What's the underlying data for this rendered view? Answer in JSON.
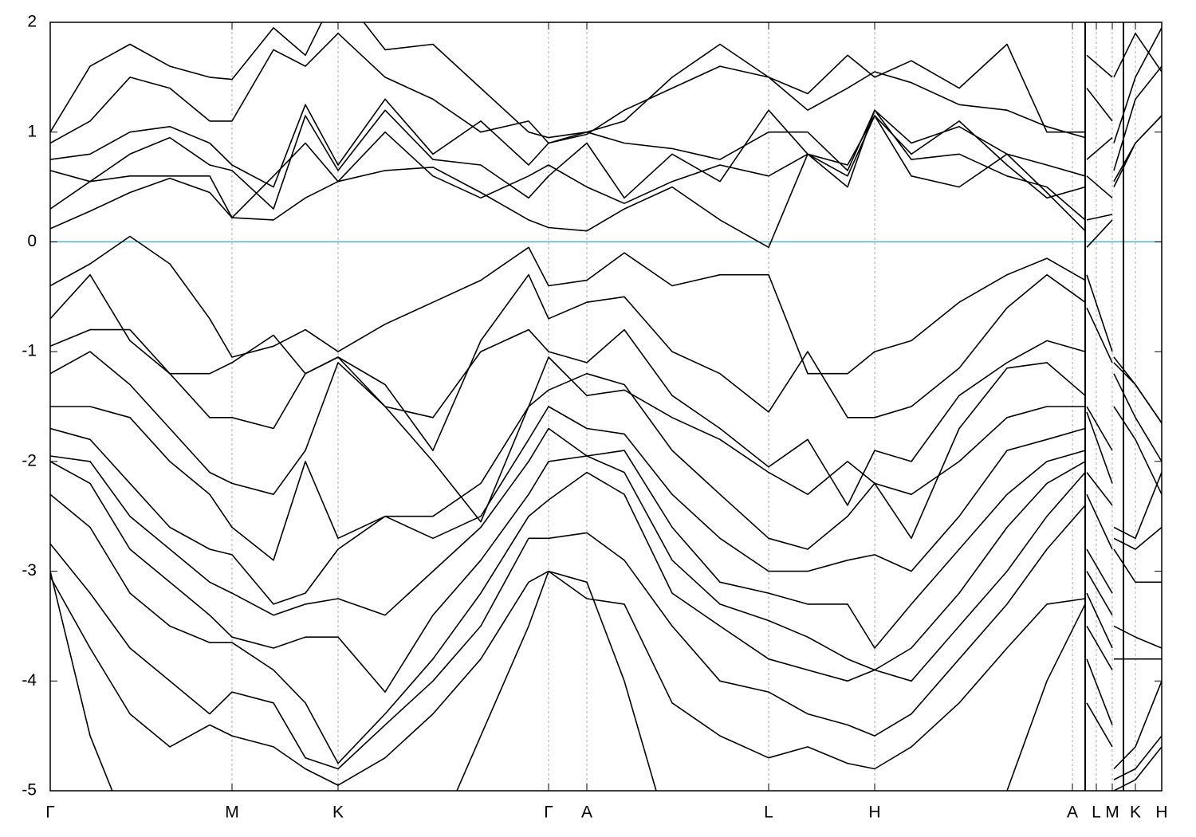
{
  "chart_data": {
    "type": "line",
    "xlim": [
      0,
      13.94
    ],
    "ylim": [
      -5,
      2
    ],
    "yticks": [
      2,
      1,
      0,
      -1,
      -2,
      -3,
      -4,
      -5
    ],
    "xticks": [
      {
        "value": 0,
        "label": "Γ"
      },
      {
        "value": 2.28,
        "label": "M"
      },
      {
        "value": 3.61,
        "label": "K"
      },
      {
        "value": 6.25,
        "label": "Γ"
      },
      {
        "value": 6.73,
        "label": "A"
      },
      {
        "value": 9.01,
        "label": "L"
      },
      {
        "value": 10.34,
        "label": "H"
      },
      {
        "value": 12.82,
        "label": "A"
      },
      {
        "value": 13.12,
        "label": "L"
      },
      {
        "value": 13.32,
        "label": "M"
      },
      {
        "value": 13.61,
        "label": "K"
      },
      {
        "value": 13.94,
        "label": "H"
      }
    ],
    "grid": "x",
    "reference_line": {
      "value": 0,
      "color": "#4fb0c6"
    },
    "x": [
      0,
      0.5,
      1.0,
      1.5,
      2.0,
      2.28,
      2.8,
      3.2,
      3.61,
      4.2,
      4.8,
      5.4,
      6.0,
      6.25,
      6.73,
      7.2,
      7.8,
      8.4,
      9.01,
      9.5,
      10.0,
      10.34,
      10.8,
      11.4,
      12.0,
      12.5,
      12.98,
      12.99,
      13.0,
      13.32,
      13.33,
      13.34,
      13.61,
      13.94
    ],
    "series": [
      {
        "color": "#000000",
        "values": [
          0.12,
          0.28,
          0.45,
          0.58,
          0.45,
          0.22,
          0.2,
          0.4,
          0.55,
          0.65,
          0.68,
          0.45,
          0.2,
          0.13,
          0.1,
          0.3,
          0.5,
          0.2,
          -0.05,
          0.8,
          0.6,
          1.15,
          0.6,
          0.5,
          0.8,
          0.45,
          0.1,
          null,
          -0.05,
          0.2,
          null,
          0.55,
          0.9,
          1.15
        ]
      },
      {
        "color": "#000000",
        "values": [
          0.3,
          0.55,
          0.6,
          0.6,
          0.6,
          0.22,
          0.6,
          0.9,
          0.55,
          1.0,
          0.6,
          0.4,
          0.6,
          0.7,
          0.5,
          0.35,
          0.55,
          0.7,
          0.6,
          0.8,
          0.5,
          1.2,
          0.75,
          0.8,
          0.6,
          0.5,
          0.2,
          null,
          0.2,
          0.25,
          null,
          0.5,
          0.9,
          1.15
        ]
      },
      {
        "color": "#000000",
        "values": [
          0.65,
          0.55,
          0.8,
          0.95,
          0.7,
          0.65,
          0.3,
          1.15,
          0.65,
          1.2,
          0.75,
          0.7,
          0.4,
          0.6,
          0.9,
          0.4,
          0.8,
          0.55,
          1.2,
          0.8,
          0.7,
          1.15,
          0.8,
          1.1,
          0.7,
          0.4,
          0.5,
          null,
          0.6,
          0.4,
          null,
          0.65,
          1.3,
          1.6
        ]
      },
      {
        "color": "#000000",
        "values": [
          0.75,
          0.8,
          1.0,
          1.05,
          0.9,
          0.7,
          0.5,
          1.25,
          0.7,
          1.3,
          0.8,
          1.1,
          0.7,
          0.9,
          1.0,
          0.9,
          0.85,
          0.75,
          1.0,
          1.0,
          0.65,
          1.2,
          0.9,
          1.05,
          0.8,
          0.7,
          0.6,
          null,
          0.75,
          0.95,
          null,
          0.9,
          1.5,
          1.95
        ]
      },
      {
        "color": "#000000",
        "values": [
          0.9,
          1.1,
          1.5,
          1.4,
          1.1,
          1.1,
          1.75,
          1.6,
          1.9,
          1.5,
          1.3,
          1.0,
          1.1,
          0.9,
          0.98,
          1.2,
          1.4,
          1.6,
          1.5,
          1.2,
          1.4,
          1.55,
          1.45,
          1.25,
          1.2,
          1.05,
          0.95,
          null,
          1.4,
          1.1,
          null,
          1.5,
          1.9,
          1.55
        ]
      },
      {
        "color": "#000000",
        "values": [
          1.0,
          1.6,
          1.8,
          1.6,
          1.5,
          1.48,
          1.95,
          1.7,
          2.3,
          1.75,
          1.8,
          1.4,
          1.0,
          0.95,
          1.0,
          1.1,
          1.5,
          1.8,
          1.5,
          1.35,
          1.7,
          1.5,
          1.65,
          1.4,
          1.8,
          1.0,
          1.0,
          null,
          1.7,
          1.5,
          null,
          2.1,
          2.3,
          2.0
        ]
      },
      {
        "color": "#000000",
        "values": [
          -0.4,
          -0.2,
          0.05,
          -0.2,
          -0.7,
          -1.05,
          -0.95,
          -0.8,
          -1.0,
          -0.75,
          -0.55,
          -0.35,
          -0.05,
          -0.4,
          -0.35,
          -0.1,
          -0.4,
          -0.3,
          -0.3,
          -1.2,
          -1.2,
          -1.0,
          -0.9,
          -0.55,
          -0.3,
          -0.15,
          -0.35,
          null,
          -0.3,
          -1.0,
          null,
          -1.05,
          -1.3,
          -1.65
        ]
      },
      {
        "color": "#000000",
        "values": [
          -0.7,
          -0.3,
          -0.9,
          -1.2,
          -1.2,
          -1.1,
          -0.85,
          -1.2,
          -1.05,
          -1.3,
          -1.9,
          -0.9,
          -0.3,
          -0.7,
          -0.55,
          -0.5,
          -1.0,
          -1.2,
          -1.55,
          -1.0,
          -1.6,
          -1.6,
          -1.5,
          -1.15,
          -0.6,
          -0.3,
          -0.55,
          null,
          -0.6,
          -1.1,
          null,
          -1.1,
          -1.3,
          -1.65
        ]
      },
      {
        "color": "#000000",
        "values": [
          -0.95,
          -0.8,
          -0.8,
          -1.2,
          -1.6,
          -1.6,
          -1.7,
          -1.2,
          -1.05,
          -1.5,
          -1.6,
          -1.0,
          -0.8,
          -1.0,
          -1.1,
          -0.8,
          -1.4,
          -1.7,
          -2.05,
          -1.8,
          -2.4,
          -1.9,
          -2.0,
          -1.4,
          -1.1,
          -0.9,
          -1.0,
          null,
          -1.5,
          -1.9,
          null,
          -1.2,
          -1.6,
          -2.0
        ]
      },
      {
        "color": "#000000",
        "values": [
          -1.2,
          -1.0,
          -1.3,
          -1.7,
          -2.1,
          -2.2,
          -2.3,
          -1.9,
          -1.1,
          -1.5,
          -2.0,
          -2.55,
          -1.5,
          -1.05,
          -1.4,
          -1.35,
          -1.6,
          -1.8,
          -2.1,
          -2.3,
          -2.0,
          -2.2,
          -2.7,
          -1.7,
          -1.15,
          -1.1,
          -1.4,
          null,
          -1.55,
          -2.2,
          null,
          -1.5,
          -1.8,
          -2.3
        ]
      },
      {
        "color": "#000000",
        "values": [
          -1.5,
          -1.5,
          -1.6,
          -2.0,
          -2.3,
          -2.6,
          -2.9,
          -2.0,
          -2.7,
          -2.5,
          -2.5,
          -2.2,
          -1.5,
          -1.35,
          -1.2,
          -1.3,
          -1.9,
          -2.3,
          -2.7,
          -2.8,
          -2.5,
          -2.2,
          -2.3,
          -2.0,
          -1.6,
          -1.5,
          -1.5,
          null,
          -2.1,
          -2.4,
          null,
          -2.6,
          -2.7,
          -2.1
        ]
      },
      {
        "color": "#000000",
        "values": [
          -1.7,
          -1.8,
          -2.2,
          -2.6,
          -2.8,
          -2.85,
          -3.3,
          -3.2,
          -2.8,
          -2.5,
          -2.7,
          -2.5,
          -1.8,
          -1.5,
          -1.7,
          -1.75,
          -2.3,
          -2.7,
          -3.0,
          -3.0,
          -2.9,
          -2.85,
          -3.0,
          -2.5,
          -1.9,
          -1.8,
          -1.7,
          null,
          -2.3,
          -2.8,
          null,
          -2.7,
          -2.8,
          -2.6
        ]
      },
      {
        "color": "#000000",
        "values": [
          -1.95,
          -2.0,
          -2.5,
          -2.8,
          -3.1,
          -3.2,
          -3.4,
          -3.3,
          -3.25,
          -3.4,
          -3.0,
          -2.6,
          -2.0,
          -1.7,
          -1.95,
          -1.9,
          -2.6,
          -3.1,
          -3.2,
          -3.3,
          -3.3,
          -3.7,
          -3.3,
          -2.8,
          -2.3,
          -2.0,
          -1.9,
          null,
          -2.8,
          -3.2,
          null,
          -2.8,
          -3.1,
          -3.1
        ]
      },
      {
        "color": "#000000",
        "values": [
          -2.0,
          -2.2,
          -2.8,
          -3.1,
          -3.4,
          -3.6,
          -3.7,
          -3.6,
          -3.6,
          -4.1,
          -3.4,
          -2.9,
          -2.3,
          -2.0,
          -1.95,
          -2.1,
          -2.9,
          -3.3,
          -3.45,
          -3.6,
          -3.8,
          -3.9,
          -3.7,
          -3.2,
          -2.6,
          -2.2,
          -2.0,
          null,
          -3.0,
          -3.4,
          null,
          -3.5,
          -3.6,
          -3.7
        ]
      },
      {
        "color": "#000000",
        "values": [
          -2.3,
          -2.6,
          -3.2,
          -3.5,
          -3.65,
          -3.65,
          -3.9,
          -4.2,
          -4.75,
          -4.3,
          -3.8,
          -3.2,
          -2.5,
          -2.35,
          -2.1,
          -2.3,
          -3.2,
          -3.5,
          -3.8,
          -3.9,
          -4.0,
          -3.9,
          -4.0,
          -3.5,
          -3.0,
          -2.5,
          -2.1,
          null,
          -3.2,
          -3.7,
          null,
          -3.8,
          -3.8,
          -3.8
        ]
      },
      {
        "color": "#000000",
        "values": [
          -2.75,
          -3.2,
          -3.7,
          -4.0,
          -4.3,
          -4.1,
          -4.2,
          -4.7,
          -4.8,
          -4.4,
          -4.0,
          -3.5,
          -2.7,
          -2.7,
          -2.65,
          -2.9,
          -3.5,
          -4.0,
          -4.1,
          -4.3,
          -4.4,
          -4.5,
          -4.3,
          -3.8,
          -3.3,
          -2.8,
          -2.4,
          null,
          -3.5,
          -3.9,
          null,
          -4.8,
          -4.6,
          -4.0
        ]
      },
      {
        "color": "#000000",
        "values": [
          -3.05,
          -3.7,
          -4.3,
          -4.6,
          -4.4,
          -4.5,
          -4.6,
          -4.8,
          -4.95,
          -4.7,
          -4.3,
          -3.8,
          -3.1,
          -3.0,
          -3.25,
          -3.3,
          -4.2,
          -4.5,
          -4.7,
          -4.6,
          -4.75,
          -4.8,
          -4.6,
          -4.2,
          -3.7,
          -3.3,
          -3.25,
          null,
          -3.8,
          -4.4,
          null,
          -4.9,
          -4.8,
          -4.5
        ]
      },
      {
        "color": "#000000",
        "values": [
          -3.0,
          -4.5,
          -5.4,
          -5.5,
          -5.5,
          -5.5,
          -5.5,
          -5.2,
          -5.0,
          -5.3,
          -5.5,
          -4.5,
          -3.5,
          -3.0,
          -3.1,
          -4.0,
          -5.5,
          -5.5,
          -5.5,
          -5.5,
          -5.4,
          -5.0,
          -5.5,
          -5.5,
          -5.0,
          -4.0,
          -3.3,
          null,
          -4.2,
          -4.6,
          null,
          -5.0,
          -4.9,
          -4.6
        ]
      }
    ]
  }
}
